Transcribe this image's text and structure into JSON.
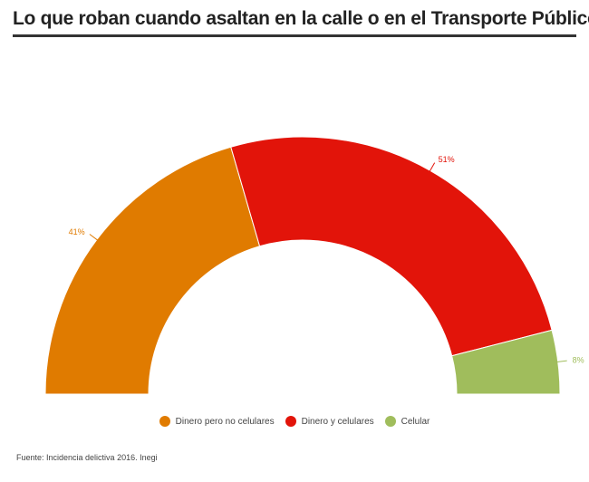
{
  "header": {
    "title": "Lo que roban cuando asaltan en la calle o en el Transporte Público"
  },
  "chart_data": {
    "type": "pie",
    "variant": "semicircle-donut",
    "title": "Lo que roban cuando asaltan en la calle o en el Transporte Público",
    "categories": [
      "Dinero pero no celulares",
      "Dinero y celulares",
      "Celular"
    ],
    "values": [
      41,
      51,
      8
    ],
    "labels": [
      "41%",
      "51%",
      "8%"
    ],
    "colors": [
      "#e07b00",
      "#e2140a",
      "#a0bd5c"
    ],
    "legend_position": "bottom-center"
  },
  "source": "Fuente: Incidencia delictiva 2016. Inegi"
}
